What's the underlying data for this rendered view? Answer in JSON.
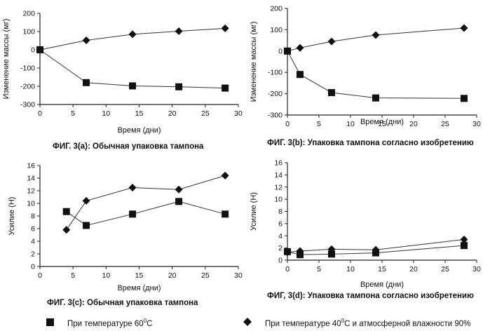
{
  "legend": {
    "square_label": "При температуре 60",
    "square_sup": "0",
    "square_suffix": "C",
    "diamond_label": "При температуре 40",
    "diamond_sup": "0",
    "diamond_suffix": "C и атмосферной влажности 90%"
  },
  "colors": {
    "marker": "#111111",
    "line": "#333333"
  },
  "chart_data": [
    {
      "id": "3a",
      "type": "line",
      "caption": "ФИГ. 3(a): Обычная упаковка тампона",
      "xlabel": "Время (дни)",
      "ylabel": "Изменение массы (мг)",
      "xlim": [
        0,
        30
      ],
      "ylim": [
        -300,
        200
      ],
      "xticks": [
        0,
        5,
        10,
        15,
        20,
        25,
        30
      ],
      "yticks": [
        -300,
        -200,
        -100,
        0,
        100,
        200
      ],
      "grid": false,
      "series": [
        {
          "marker": "square",
          "x": [
            0,
            7,
            14,
            21,
            28
          ],
          "y": [
            0,
            -180,
            -198,
            -203,
            -210
          ]
        },
        {
          "marker": "diamond",
          "x": [
            0,
            7,
            14,
            21,
            28
          ],
          "y": [
            0,
            52,
            85,
            102,
            118
          ]
        }
      ]
    },
    {
      "id": "3b",
      "type": "line",
      "caption": "ФИГ. 3(b): Упаковка тампона согласно изобретению",
      "xlabel": "Время (дни)",
      "ylabel": "Изменение массы (мг)",
      "xlim": [
        0,
        30
      ],
      "ylim": [
        -300,
        200
      ],
      "xticks": [
        0,
        5,
        10,
        15,
        20,
        25,
        30
      ],
      "yticks": [
        -300,
        -200,
        -100,
        0,
        100,
        200
      ],
      "grid": false,
      "series": [
        {
          "marker": "square",
          "x": [
            0,
            2,
            7,
            14,
            28
          ],
          "y": [
            0,
            -110,
            -195,
            -220,
            -222
          ]
        },
        {
          "marker": "diamond",
          "x": [
            0,
            2,
            7,
            14,
            28
          ],
          "y": [
            0,
            15,
            45,
            75,
            108
          ]
        }
      ]
    },
    {
      "id": "3c",
      "type": "line",
      "caption": "ФИГ. 3(c): Обычная упаковка тампона",
      "xlabel": "Время (дни)",
      "ylabel": "Усилие (Н)",
      "xlim": [
        0,
        30
      ],
      "ylim": [
        0,
        16
      ],
      "xticks": [
        0,
        5,
        10,
        15,
        20,
        25,
        30
      ],
      "yticks": [
        0,
        2,
        4,
        6,
        8,
        10,
        12,
        14,
        16
      ],
      "grid": false,
      "series": [
        {
          "marker": "square",
          "x": [
            4,
            7,
            14,
            21,
            28
          ],
          "y": [
            8.7,
            6.5,
            8.3,
            10.3,
            8.3
          ]
        },
        {
          "marker": "diamond",
          "x": [
            4,
            7,
            14,
            21,
            28
          ],
          "y": [
            5.8,
            10.4,
            12.5,
            12.2,
            14.4
          ]
        }
      ]
    },
    {
      "id": "3d",
      "type": "line",
      "caption": "ФИГ, 3(d): Упаковка тампона согласно изобретению",
      "xlabel": "Время (дни)",
      "ylabel": "Усилие (Н)",
      "xlim": [
        0,
        30
      ],
      "ylim": [
        0,
        16
      ],
      "xticks": [
        0,
        5,
        10,
        15,
        20,
        25,
        30
      ],
      "yticks": [
        0,
        2,
        4,
        6,
        8,
        10,
        12,
        14,
        16
      ],
      "grid": false,
      "series": [
        {
          "marker": "square",
          "x": [
            0,
            2,
            7,
            14,
            28
          ],
          "y": [
            1.4,
            0.9,
            1.0,
            1.2,
            2.4
          ]
        },
        {
          "marker": "diamond",
          "x": [
            0,
            2,
            7,
            14,
            28
          ],
          "y": [
            1.3,
            1.5,
            1.8,
            1.7,
            3.4
          ]
        }
      ]
    }
  ]
}
